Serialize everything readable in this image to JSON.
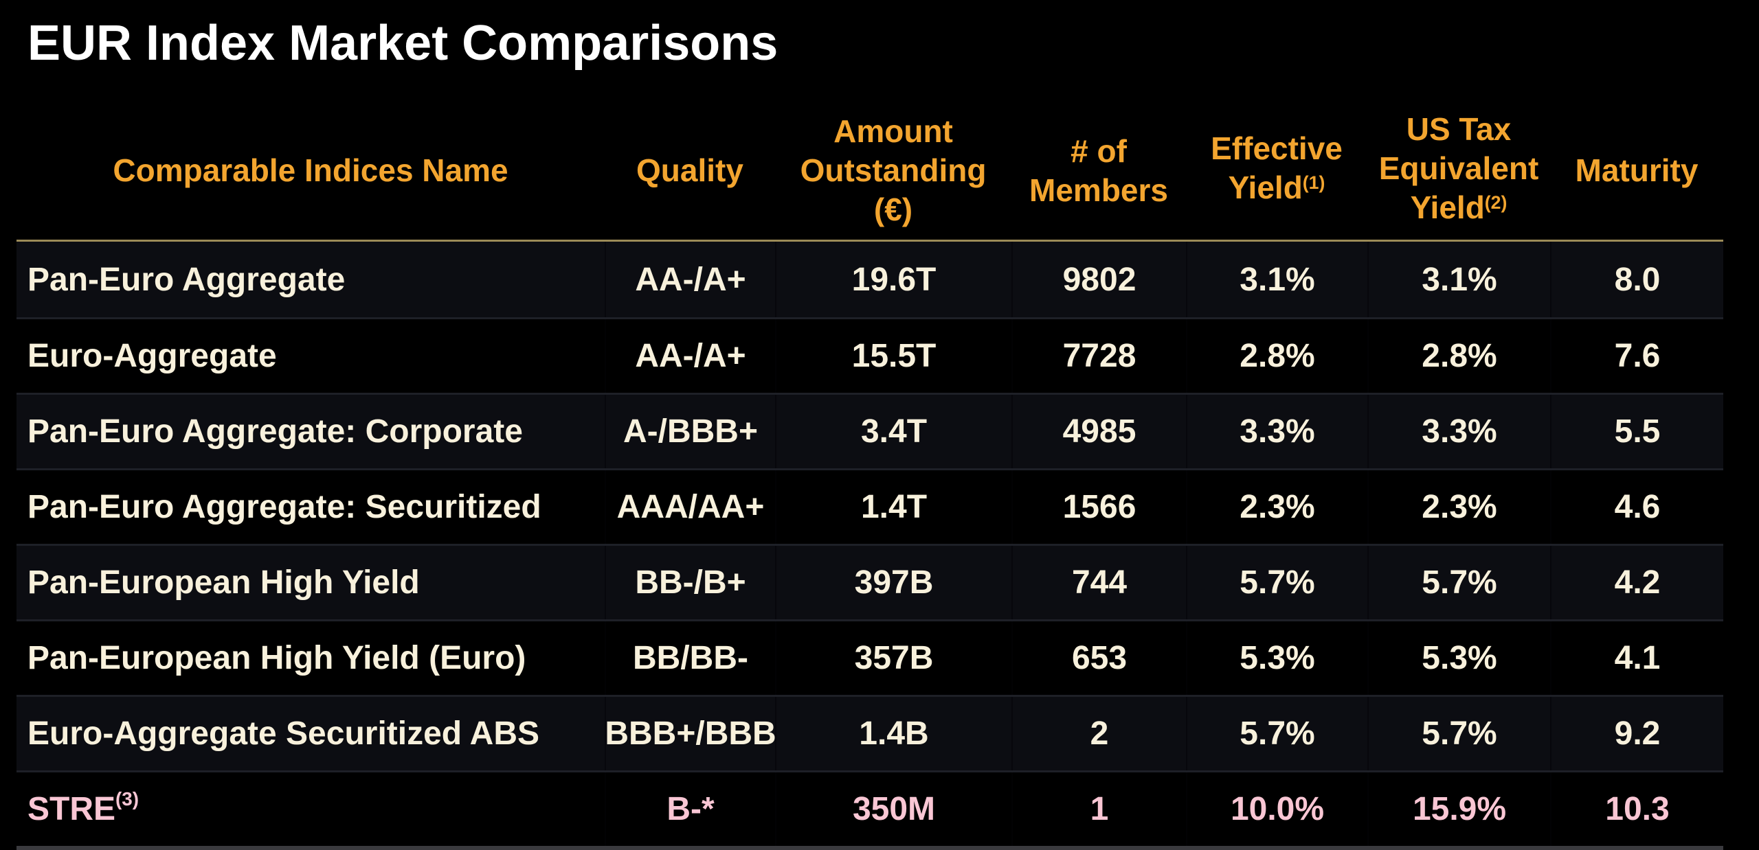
{
  "title": "EUR Index Market Comparisons",
  "colors": {
    "page_bg": "#000000",
    "title_text": "#FFFFFF",
    "header_text": "#F3A52F",
    "header_rule_gold": "#9C8B57",
    "row_text": "#F8F1DC",
    "row_alt_bg": "#0C0D12",
    "highlight_row_text": "#F9C6D4",
    "bottom_rule_gray": "#3A3A3E"
  },
  "table": {
    "columns": [
      {
        "id": "name",
        "label": "Comparable Indices Name",
        "lines": [
          "Comparable Indices Name"
        ],
        "sup": ""
      },
      {
        "id": "quality",
        "label": "Quality",
        "lines": [
          "Quality"
        ],
        "sup": ""
      },
      {
        "id": "amount",
        "label": "Amount Outstanding (€)",
        "lines": [
          "Amount",
          "Outstanding",
          "(€)"
        ],
        "sup": ""
      },
      {
        "id": "members",
        "label": "# of Members",
        "lines": [
          "# of",
          "Members"
        ],
        "sup": ""
      },
      {
        "id": "effective_yield",
        "label": "Effective Yield",
        "lines": [
          "Effective",
          "Yield"
        ],
        "sup": "(1)"
      },
      {
        "id": "us_tax_equivalent_yield",
        "label": "US Tax Equivalent Yield",
        "lines": [
          "US Tax",
          "Equivalent",
          "Yield"
        ],
        "sup": "(2)"
      },
      {
        "id": "maturity",
        "label": "Maturity",
        "lines": [
          "Maturity"
        ],
        "sup": ""
      }
    ],
    "rows": [
      {
        "name": "Pan-Euro Aggregate",
        "name_sup": "",
        "quality": "AA-/A+",
        "amount": "19.6T",
        "members": "9802",
        "effective_yield": "3.1%",
        "us_tax_equivalent_yield": "3.1%",
        "maturity": "8.0",
        "highlight": false
      },
      {
        "name": "Euro-Aggregate",
        "name_sup": "",
        "quality": "AA-/A+",
        "amount": "15.5T",
        "members": "7728",
        "effective_yield": "2.8%",
        "us_tax_equivalent_yield": "2.8%",
        "maturity": "7.6",
        "highlight": false
      },
      {
        "name": "Pan-Euro Aggregate: Corporate",
        "name_sup": "",
        "quality": "A-/BBB+",
        "amount": "3.4T",
        "members": "4985",
        "effective_yield": "3.3%",
        "us_tax_equivalent_yield": "3.3%",
        "maturity": "5.5",
        "highlight": false
      },
      {
        "name": "Pan-Euro Aggregate: Securitized",
        "name_sup": "",
        "quality": "AAA/AA+",
        "amount": "1.4T",
        "members": "1566",
        "effective_yield": "2.3%",
        "us_tax_equivalent_yield": "2.3%",
        "maturity": "4.6",
        "highlight": false
      },
      {
        "name": "Pan-European High Yield",
        "name_sup": "",
        "quality": "BB-/B+",
        "amount": "397B",
        "members": "744",
        "effective_yield": "5.7%",
        "us_tax_equivalent_yield": "5.7%",
        "maturity": "4.2",
        "highlight": false
      },
      {
        "name": "Pan-European High Yield (Euro)",
        "name_sup": "",
        "quality": "BB/BB-",
        "amount": "357B",
        "members": "653",
        "effective_yield": "5.3%",
        "us_tax_equivalent_yield": "5.3%",
        "maturity": "4.1",
        "highlight": false
      },
      {
        "name": "Euro-Aggregate Securitized ABS",
        "name_sup": "",
        "quality": "BBB+/BBB",
        "amount": "1.4B",
        "members": "2",
        "effective_yield": "5.7%",
        "us_tax_equivalent_yield": "5.7%",
        "maturity": "9.2",
        "highlight": false
      },
      {
        "name": "STRE",
        "name_sup": "(3)",
        "quality": "B-*",
        "amount": "350M",
        "members": "1",
        "effective_yield": "10.0%",
        "us_tax_equivalent_yield": "15.9%",
        "maturity": "10.3",
        "highlight": true
      }
    ]
  }
}
